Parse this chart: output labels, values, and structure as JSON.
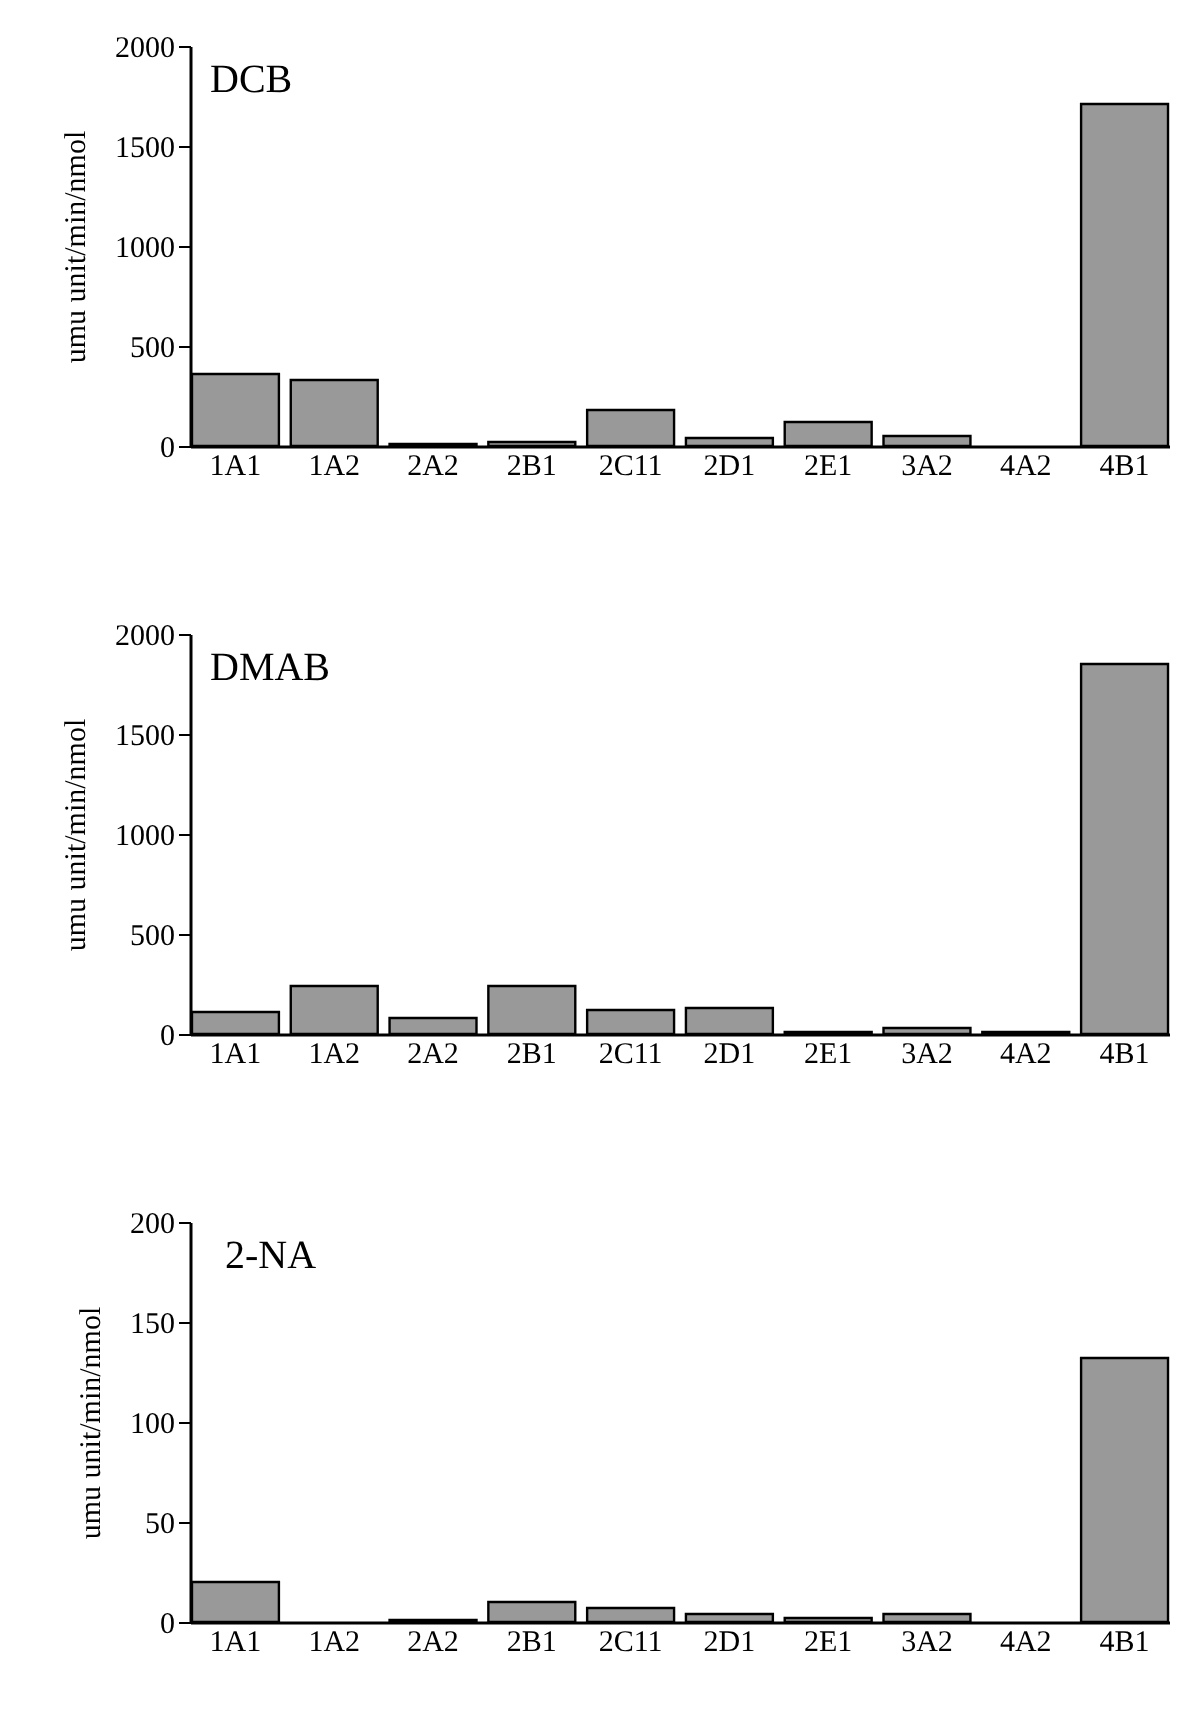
{
  "chart_data": [
    {
      "type": "bar",
      "title": "DCB",
      "ylabel": "umu unit/min/nmol",
      "categories": [
        "1A1",
        "1A2",
        "2A2",
        "2B1",
        "2C11",
        "2D1",
        "2E1",
        "3A2",
        "4A2",
        "4B1"
      ],
      "values": [
        360,
        330,
        10,
        20,
        180,
        40,
        120,
        50,
        null,
        1710
      ],
      "color": "#999999",
      "ylim": [
        0,
        2000
      ],
      "yticks": [
        0,
        500,
        1000,
        1500,
        2000
      ]
    },
    {
      "type": "bar",
      "title": "DMAB",
      "ylabel": "umu unit/min/nmol",
      "categories": [
        "1A1",
        "1A2",
        "2A2",
        "2B1",
        "2C11",
        "2D1",
        "2E1",
        "3A2",
        "4A2",
        "4B1"
      ],
      "values": [
        110,
        240,
        80,
        240,
        120,
        130,
        10,
        30,
        10,
        1850
      ],
      "color": "#999999",
      "ylim": [
        0,
        2000
      ],
      "yticks": [
        0,
        500,
        1000,
        1500,
        2000
      ]
    },
    {
      "type": "bar",
      "title": "2-NA",
      "ylabel": "umu unit/min/nmol",
      "categories": [
        "1A1",
        "1A2",
        "2A2",
        "2B1",
        "2C11",
        "2D1",
        "2E1",
        "3A2",
        "4A2",
        "4B1"
      ],
      "values": [
        20,
        null,
        1,
        10,
        7,
        4,
        2,
        4,
        null,
        132
      ],
      "color": "#999999",
      "ylim": [
        0,
        200
      ],
      "yticks": [
        0,
        50,
        100,
        150,
        200
      ]
    }
  ]
}
